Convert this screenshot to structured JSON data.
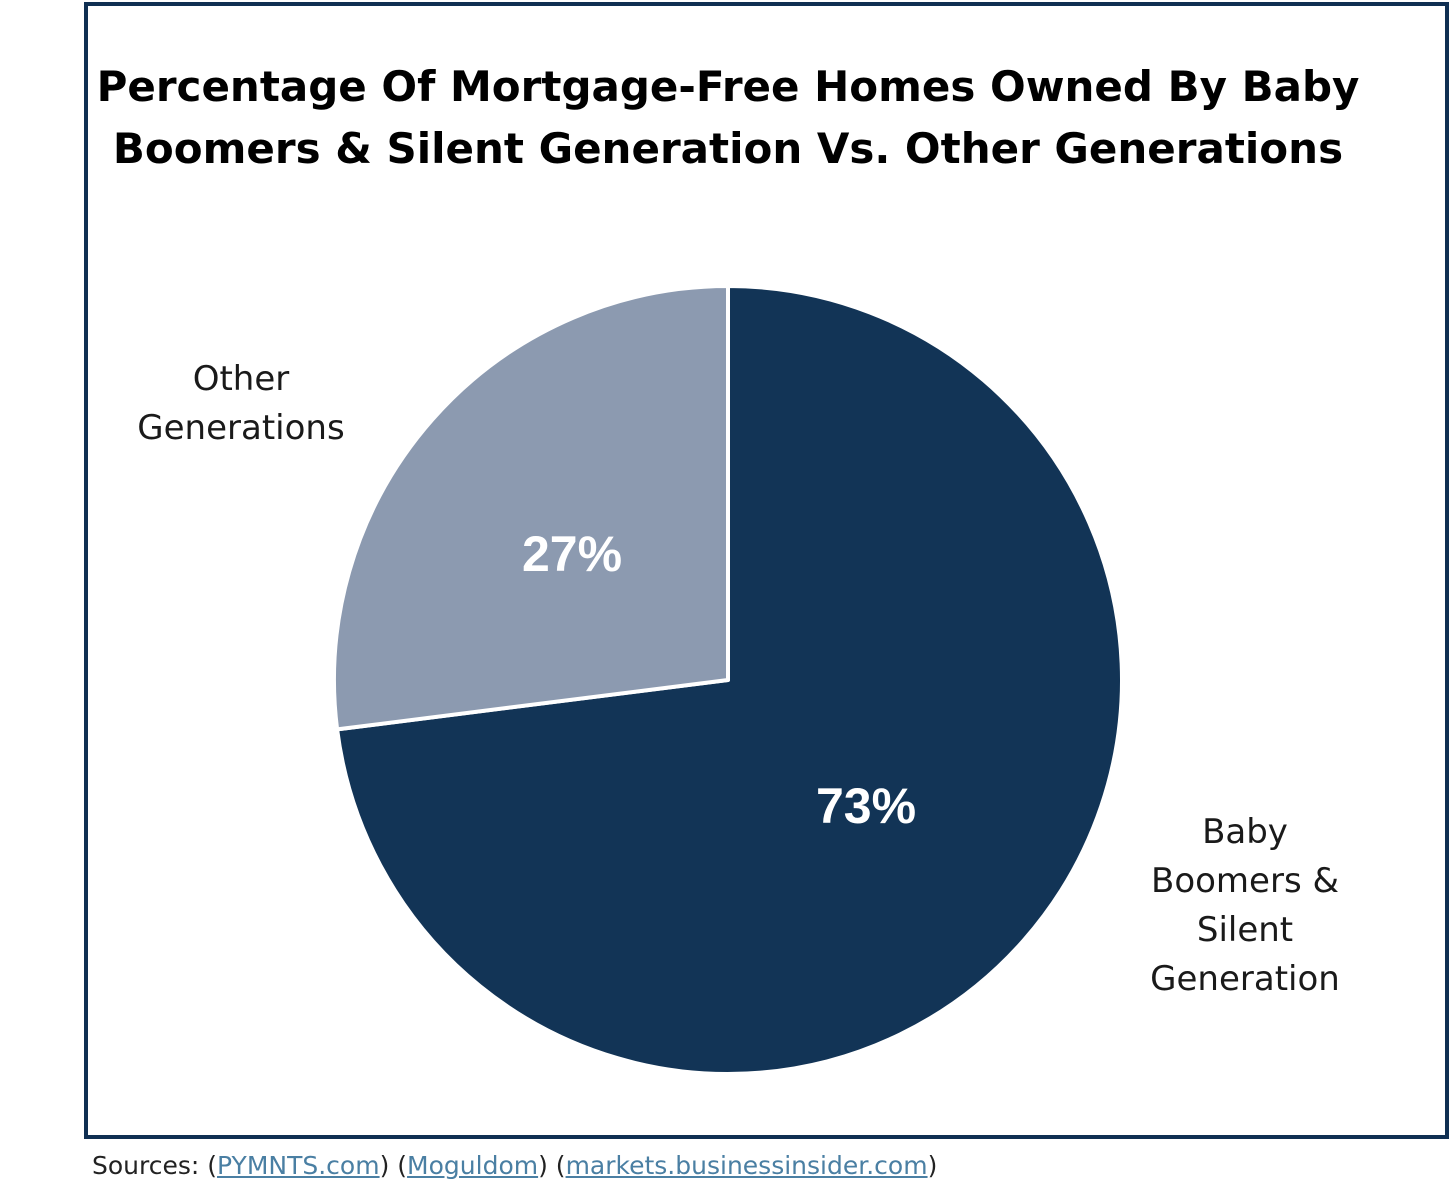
{
  "chart_data": {
    "type": "pie",
    "title_lines": [
      "Percentage Of Mortgage-Free Homes Owned By Baby",
      "Boomers & Silent Generation Vs. Other Generations"
    ],
    "slices": [
      {
        "name_lines": [
          "Baby",
          "Boomers &",
          "Silent",
          "Generation"
        ],
        "value": 73,
        "value_label": "73%",
        "color": "#123456"
      },
      {
        "name_lines": [
          "Other",
          "Generations"
        ],
        "value": 27,
        "value_label": "27%",
        "color": "#8c9ab0"
      }
    ],
    "start_angle": "12 o'clock",
    "direction": "clockwise",
    "legend": "none"
  },
  "sources": {
    "prefix": "Sources: (",
    "links": [
      "PYMNTS.com",
      "Moguldom",
      "markets.businessinsider.com"
    ],
    "sep1": ") (",
    "sep2": ") (",
    "suffix": ")"
  },
  "colors": {
    "frame_border": "#0f2f52",
    "link": "#4a7fa3"
  }
}
